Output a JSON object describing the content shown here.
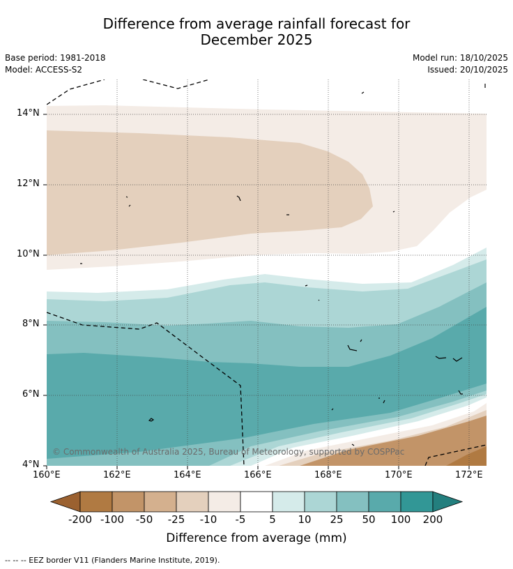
{
  "title_line1": "Difference from average rainfall forecast for",
  "title_line2": "December 2025",
  "meta": {
    "base_period": "Base period: 1981-2018",
    "model": "Model: ACCESS-S2",
    "model_run": "Model run: 18/10/2025",
    "issued": "Issued: 20/10/2025"
  },
  "axes": {
    "lat_labels": [
      "14°N",
      "12°N",
      "10°N",
      "8°N",
      "6°N",
      "4°N"
    ],
    "lon_labels": [
      "160°E",
      "162°E",
      "164°E",
      "166°E",
      "168°E",
      "170°E",
      "172°E"
    ]
  },
  "colorbar": {
    "labels": [
      "-200",
      "-100",
      "-50",
      "-25",
      "-10",
      "-5",
      "5",
      "10",
      "25",
      "50",
      "100",
      "200"
    ],
    "colors": [
      "#9b6130",
      "#b07a42",
      "#c29468",
      "#d4b08e",
      "#e4d0bd",
      "#f4ece6",
      "#ffffff",
      "#d5ebea",
      "#acd6d5",
      "#84c0c0",
      "#59aaab",
      "#329796",
      "#237f7e"
    ],
    "title": "Difference from average (mm)"
  },
  "copyright": "© Commonwealth of Australia 2025, Bureau of Meteorology, supported by COSPPac",
  "footer": "--  --  -- EEZ border V11 (Flanders Marine Institute, 2019)."
}
